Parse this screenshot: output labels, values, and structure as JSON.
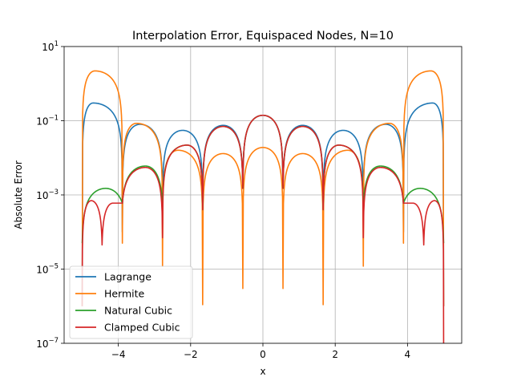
{
  "chart_data": {
    "type": "line",
    "title": "Interpolation Error, Equispaced Nodes, N=10",
    "xlabel": "x",
    "ylabel": "Absolute Error",
    "xlim": [
      -5.5,
      5.5
    ],
    "ylim": [
      1e-07,
      10
    ],
    "yscale": "log",
    "grid": true,
    "legend_position": "lower-left",
    "x_ticks": [
      -4,
      -2,
      0,
      2,
      4
    ],
    "x_tick_labels": [
      "−4",
      "−2",
      "0",
      "2",
      "4"
    ],
    "y_ticks": [
      1e-07,
      1e-05,
      0.001,
      0.1,
      10
    ],
    "y_tick_labels": [
      {
        "base": "10",
        "exp": "−7"
      },
      {
        "base": "10",
        "exp": "−5"
      },
      {
        "base": "10",
        "exp": "−3"
      },
      {
        "base": "10",
        "exp": "−1"
      },
      {
        "base": "10",
        "exp": "1"
      }
    ],
    "nodes": [
      -5,
      -3.8889,
      -2.7778,
      -1.6667,
      -0.5556,
      0.5556,
      1.6667,
      2.7778,
      3.8889,
      5
    ],
    "series": [
      {
        "name": "Lagrange",
        "color": "#1f77b4",
        "dips": [
          [
            -5,
            1e-06
          ],
          [
            -3.8889,
            0.0001
          ],
          [
            -2.7778,
            0.0008
          ],
          [
            -1.6667,
            0.0004
          ],
          [
            -0.5556,
            0.0015
          ],
          [
            0.5556,
            0.0015
          ],
          [
            1.6667,
            0.0004
          ],
          [
            2.7778,
            0.0008
          ],
          [
            3.8889,
            0.0001
          ],
          [
            5,
            1e-06
          ]
        ],
        "peaks": [
          -4.7,
          0.3,
          -3.4,
          0.08,
          -2.22,
          0.055,
          -1.1,
          0.075,
          0,
          0.14,
          1.1,
          0.075,
          2.22,
          0.055,
          3.4,
          0.08,
          4.7,
          0.3
        ]
      },
      {
        "name": "Hermite",
        "color": "#ff7f0e",
        "dips": [
          [
            -5,
            1e-06
          ],
          [
            -3.8889,
            5e-05
          ],
          [
            -2.7778,
            1.2e-05
          ],
          [
            -1.6667,
            1.1e-06
          ],
          [
            -0.5556,
            3e-06
          ],
          [
            0.5556,
            3e-06
          ],
          [
            1.6667,
            1.1e-06
          ],
          [
            2.7778,
            1.2e-05
          ],
          [
            3.8889,
            5e-05
          ],
          [
            5,
            1e-06
          ]
        ],
        "peaks": [
          -4.65,
          2.2,
          -3.5,
          0.085,
          -2.35,
          0.016,
          -1.1,
          0.013,
          0,
          0.019,
          1.1,
          0.013,
          2.35,
          0.016,
          3.5,
          0.085,
          4.65,
          2.2
        ]
      },
      {
        "name": "Natural Cubic",
        "color": "#2ca02c",
        "dips": [
          [
            -5,
            5e-05
          ],
          [
            -3.8889,
            0.0006
          ],
          [
            -2.7778,
            0.0005
          ],
          [
            -1.6667,
            0.0004
          ],
          [
            -0.5556,
            0.0015
          ],
          [
            0.5556,
            0.0015
          ],
          [
            1.6667,
            0.0004
          ],
          [
            2.7778,
            0.0005
          ],
          [
            3.8889,
            0.0006
          ],
          [
            5,
            5e-05
          ]
        ],
        "peaks": [
          -4.35,
          0.0015,
          -3.25,
          0.006,
          -2.1,
          0.022,
          -1.1,
          0.07,
          0,
          0.14,
          1.1,
          0.07,
          2.1,
          0.022,
          3.25,
          0.006,
          4.35,
          0.0015
        ]
      },
      {
        "name": "Clamped Cubic",
        "color": "#d62728",
        "dips": [
          [
            -5,
            1e-06
          ],
          [
            -4.45,
            4.5e-05
          ],
          [
            -3.8889,
            0.0006
          ],
          [
            -2.7778,
            7e-05
          ],
          [
            -1.6667,
            0.0004
          ],
          [
            -0.5556,
            0.0015
          ],
          [
            0.5556,
            0.0015
          ],
          [
            1.6667,
            0.0004
          ],
          [
            2.7778,
            7e-05
          ],
          [
            3.8889,
            0.0006
          ],
          [
            4.45,
            4.5e-05
          ],
          [
            5,
            1e-07
          ]
        ],
        "peaks": [
          -4.75,
          0.0007,
          -4.15,
          0.0006,
          -3.25,
          0.0055,
          -2.1,
          0.022,
          -1.1,
          0.07,
          0,
          0.14,
          1.1,
          0.07,
          2.1,
          0.022,
          3.25,
          0.0055,
          4.15,
          0.0006,
          4.75,
          0.0007
        ]
      }
    ]
  }
}
